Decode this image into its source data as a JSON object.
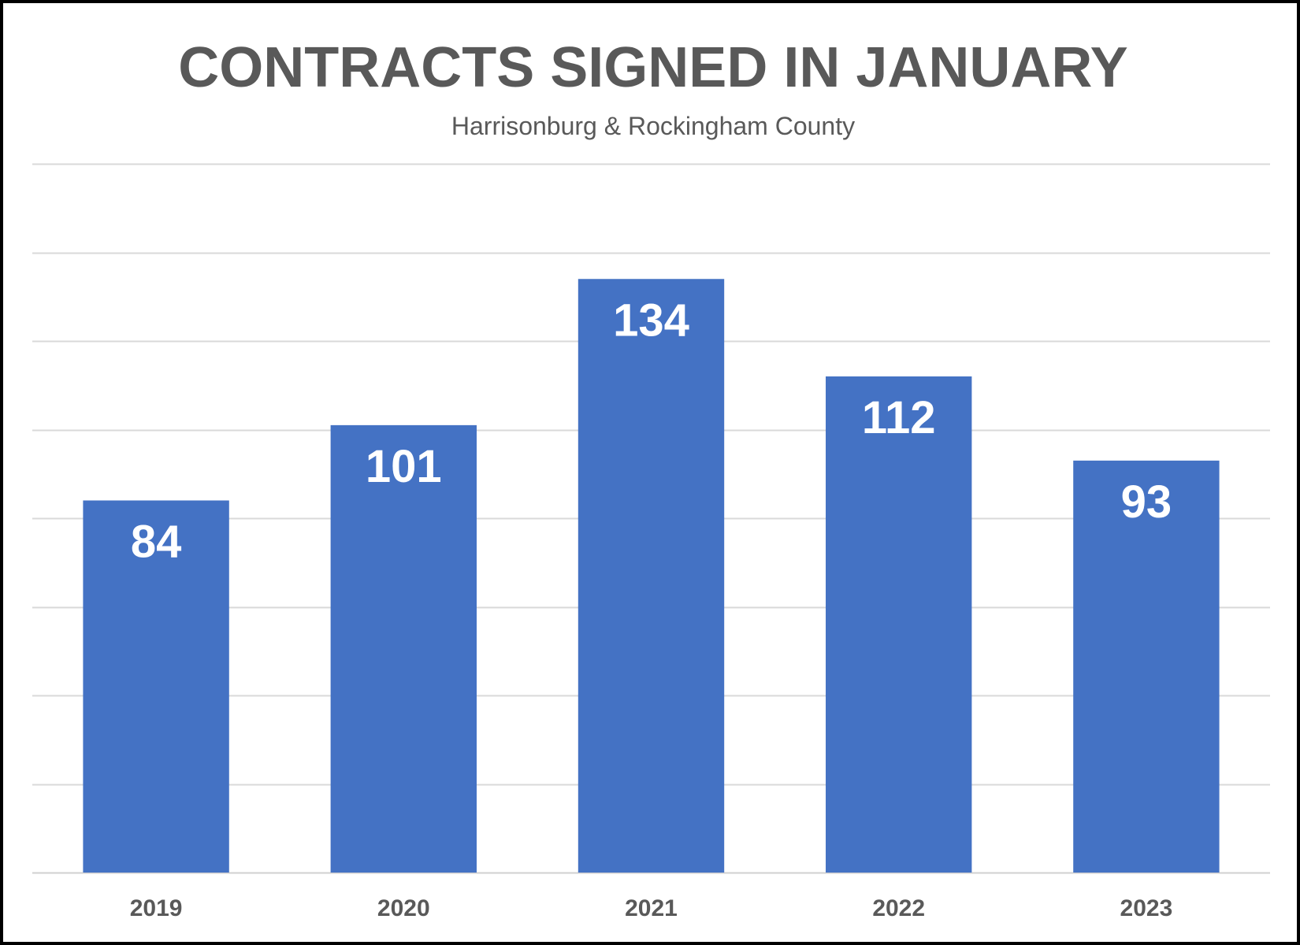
{
  "chart_data": {
    "type": "bar",
    "title": "CONTRACTS SIGNED IN JANUARY",
    "subtitle": "Harrisonburg & Rockingham County",
    "categories": [
      "2019",
      "2020",
      "2021",
      "2022",
      "2023"
    ],
    "values": [
      84,
      101,
      134,
      112,
      93
    ],
    "xlabel": "",
    "ylabel": "",
    "ylim": [
      0,
      160
    ],
    "grid": true,
    "legend": "none",
    "bar_color": "#4472C4",
    "data_label_color": "#FFFFFF",
    "data_label_position": "inside-top"
  }
}
